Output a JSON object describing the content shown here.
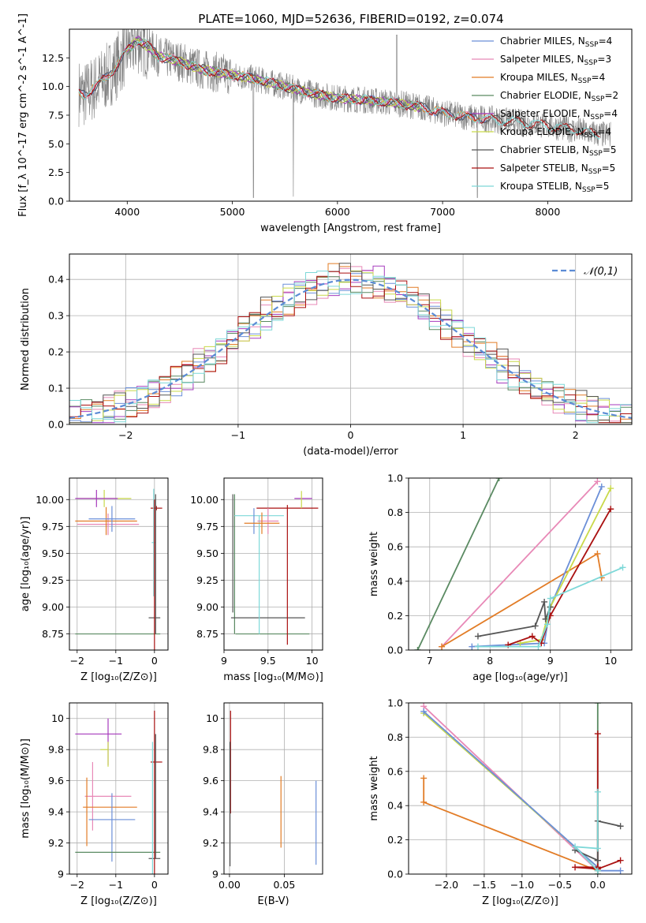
{
  "page_title": "PLATE=1060, MJD=52636, FIBERID=0192, z=0.074",
  "colors": {
    "Chabrier MILES": "#6b8fd8",
    "Salpeter MILES": "#e889b7",
    "Kroupa MILES": "#e27c26",
    "Chabrier ELODIE": "#5a8a62",
    "Salpeter ELODIE": "#a63bbd",
    "Kroupa ELODIE": "#c9d94a",
    "Chabrier STELIB": "#555555",
    "Salpeter STELIB": "#aa1111",
    "Kroupa STELIB": "#7dd8d8",
    "data": "#808080",
    "normal": "#5b8bd5"
  },
  "chart_data": [
    {
      "id": "spectrum",
      "type": "line",
      "title": "PLATE=1060, MJD=52636, FIBERID=0192, z=0.074",
      "xlabel": "wavelength [Angstrom, rest frame]",
      "ylabel": "Flux [f_λ 10^-17 erg cm^-2 s^-1 A^-1]",
      "xlim": [
        3450,
        8800
      ],
      "ylim": [
        0,
        15
      ],
      "xticks": [
        4000,
        5000,
        6000,
        7000,
        8000
      ],
      "yticks": [
        0.0,
        2.5,
        5.0,
        7.5,
        10.0,
        12.5
      ],
      "legend_position": "top-right",
      "legend": [
        {
          "name": "Chabrier MILES",
          "nssp": "4"
        },
        {
          "name": "Salpeter MILES",
          "nssp": "3"
        },
        {
          "name": "Kroupa MILES",
          "nssp": "4"
        },
        {
          "name": "Chabrier ELODIE",
          "nssp": "2"
        },
        {
          "name": "Salpeter ELODIE",
          "nssp": "4"
        },
        {
          "name": "Kroupa ELODIE",
          "nssp": "4"
        },
        {
          "name": "Chabrier STELIB",
          "nssp": "5"
        },
        {
          "name": "Salpeter STELIB",
          "nssp": "5"
        },
        {
          "name": "Kroupa STELIB",
          "nssp": "5"
        }
      ],
      "continuum": {
        "x": [
          3530,
          3600,
          3700,
          3800,
          3900,
          4000,
          4100,
          4200,
          4300,
          4500,
          4700,
          5000,
          5200,
          5500,
          5800,
          6000,
          6300,
          6600,
          6800,
          7000,
          7200,
          7500,
          7800,
          8000,
          8200,
          8500
        ],
        "y": [
          9.5,
          9.3,
          10.0,
          10.8,
          11.8,
          13.2,
          14.0,
          13.5,
          12.6,
          12.2,
          11.5,
          11.0,
          10.7,
          10.0,
          9.3,
          9.0,
          8.8,
          8.5,
          8.2,
          7.7,
          7.4,
          7.1,
          6.8,
          6.6,
          6.3,
          5.8
        ]
      },
      "model_ranges": [
        {
          "name": "Chabrier MILES",
          "x": [
            3540,
            7430
          ]
        },
        {
          "name": "Salpeter MILES",
          "x": [
            3540,
            7430
          ]
        },
        {
          "name": "Kroupa MILES",
          "x": [
            3540,
            7430
          ]
        },
        {
          "name": "Chabrier ELODIE",
          "x": [
            4000,
            6800
          ]
        },
        {
          "name": "Salpeter ELODIE",
          "x": [
            4000,
            6800
          ]
        },
        {
          "name": "Kroupa ELODIE",
          "x": [
            4000,
            6800
          ]
        },
        {
          "name": "Chabrier STELIB",
          "x": [
            3540,
            8500
          ]
        },
        {
          "name": "Salpeter STELIB",
          "x": [
            3540,
            8500
          ]
        },
        {
          "name": "Kroupa STELIB",
          "x": [
            3540,
            8500
          ]
        }
      ]
    },
    {
      "id": "residuals",
      "type": "histogram",
      "xlabel": "(data-model)/error",
      "ylabel": "Normed distribution",
      "xlim": [
        -2.5,
        2.5
      ],
      "ylim": [
        0,
        0.47
      ],
      "xticks": [
        -2,
        -1,
        0,
        1,
        2
      ],
      "yticks": [
        0.0,
        0.1,
        0.2,
        0.3,
        0.4
      ],
      "grid": true,
      "legend_position": "top-right",
      "normal_label": "𝒩(0,1)",
      "bin_width": 0.1,
      "series": [
        {
          "name": "Chabrier MILES",
          "offset": 0.0
        },
        {
          "name": "Salpeter MILES",
          "offset": 0.8
        },
        {
          "name": "Kroupa MILES",
          "offset": 1.6
        },
        {
          "name": "Chabrier ELODIE",
          "offset": 2.4
        },
        {
          "name": "Salpeter ELODIE",
          "offset": 3.2
        },
        {
          "name": "Kroupa ELODIE",
          "offset": 4.0
        },
        {
          "name": "Chabrier STELIB",
          "offset": 4.8
        },
        {
          "name": "Salpeter STELIB",
          "offset": 5.6
        },
        {
          "name": "Kroupa STELIB",
          "offset": 6.4
        }
      ]
    },
    {
      "id": "age-vs-Z",
      "type": "scatter",
      "xlabel": "Z [log₁₀(Z/Z⊙)]",
      "ylabel": "age  [log₁₀(age/yr)]",
      "xlim": [
        -2.2,
        0.35
      ],
      "ylim": [
        8.6,
        10.2
      ],
      "xticks": [
        -2,
        -1,
        0
      ],
      "yticks": [
        8.75,
        9.0,
        9.25,
        9.5,
        9.75,
        10.0
      ],
      "yticklabels": [
        "8.75",
        "9.00",
        "9.25",
        "9.50",
        "9.75",
        "10.00"
      ],
      "grid": true,
      "points": [
        {
          "name": "Salpeter MILES",
          "x": -1.2,
          "xerr": 0.8,
          "y": 9.77,
          "yerr": 0.1
        },
        {
          "name": "Kroupa MILES",
          "x": -1.25,
          "xerr": 0.8,
          "y": 9.8,
          "yerr": 0.13
        },
        {
          "name": "Chabrier MILES",
          "x": -1.1,
          "xerr": 0.6,
          "y": 9.82,
          "yerr": 0.12
        },
        {
          "name": "Kroupa ELODIE",
          "x": -1.3,
          "xerr": 0.7,
          "y": 10.01,
          "yerr": 0.08
        },
        {
          "name": "Salpeter ELODIE",
          "x": -1.5,
          "xerr": 0.55,
          "y": 10.01,
          "yerr": 0.08
        },
        {
          "name": "Chabrier ELODIE",
          "x": -0.95,
          "xerr": 1.1,
          "y": 8.75,
          "yerr": 0.0
        },
        {
          "name": "Chabrier STELIB",
          "x": 0.0,
          "xerr": 0.15,
          "y": 8.9,
          "yerr": 0.0
        },
        {
          "name": "Salpeter STELIB",
          "x": 0.05,
          "xerr": 0.15,
          "y": 9.92,
          "yerr": 0.02
        },
        {
          "name": "Kroupa STELIB",
          "x": -0.02,
          "xerr": 0.05,
          "y": 9.6,
          "yerr": 0.5
        },
        {
          "name": "Chabrier STELIB",
          "x": 0.03,
          "xerr": 0.0,
          "y": 9.4,
          "yerr": 0.65
        },
        {
          "name": "Salpeter STELIB",
          "x": 0.0,
          "xerr": 0.0,
          "y": 9.3,
          "yerr": 0.7
        }
      ]
    },
    {
      "id": "age-vs-mass",
      "type": "scatter",
      "xlabel": "mass [log₁₀(M/M⊙)]",
      "ylabel": "",
      "xlim": [
        9.0,
        10.12
      ],
      "ylim": [
        8.6,
        10.2
      ],
      "xticks": [
        9.0,
        9.5,
        10.0
      ],
      "yticks": [
        8.75,
        9.0,
        9.25,
        9.5,
        9.75,
        10.0
      ],
      "yticklabels": [
        "8.75",
        "9.00",
        "9.25",
        "9.50",
        "9.75",
        "10.00"
      ],
      "grid": true,
      "points": [
        {
          "name": "Chabrier ELODIE",
          "x": 9.55,
          "xerr": 0.42,
          "y": 8.75,
          "yerr": 0.0
        },
        {
          "name": "Chabrier ELODIE",
          "x": 9.12,
          "xerr": 0.0,
          "y": 9.4,
          "yerr": 0.65
        },
        {
          "name": "Chabrier STELIB",
          "x": 9.5,
          "xerr": 0.42,
          "y": 8.9,
          "yerr": 0.0
        },
        {
          "name": "Chabrier STELIB",
          "x": 9.1,
          "xerr": 0.0,
          "y": 9.5,
          "yerr": 0.55
        },
        {
          "name": "Kroupa STELIB",
          "x": 9.4,
          "xerr": 0.28,
          "y": 9.85,
          "yerr": 0.0
        },
        {
          "name": "Kroupa STELIB",
          "x": 9.4,
          "xerr": 0.0,
          "y": 9.3,
          "yerr": 0.55
        },
        {
          "name": "Salpeter STELIB",
          "x": 9.72,
          "xerr": 0.35,
          "y": 9.92,
          "yerr": 0.0
        },
        {
          "name": "Salpeter STELIB",
          "x": 9.72,
          "xerr": 0.0,
          "y": 9.3,
          "yerr": 0.65
        },
        {
          "name": "Chabrier MILES",
          "x": 9.34,
          "xerr": 0.0,
          "y": 9.8,
          "yerr": 0.12
        },
        {
          "name": "Salpeter MILES",
          "x": 9.5,
          "xerr": 0.12,
          "y": 9.8,
          "yerr": 0.12
        },
        {
          "name": "Kroupa MILES",
          "x": 9.43,
          "xerr": 0.2,
          "y": 9.78,
          "yerr": 0.1
        },
        {
          "name": "Salpeter ELODIE",
          "x": 9.9,
          "xerr": 0.1,
          "y": 10.01,
          "yerr": 0.0
        },
        {
          "name": "Kroupa ELODIE",
          "x": 9.88,
          "xerr": 0.0,
          "y": 10.0,
          "yerr": 0.08
        }
      ]
    },
    {
      "id": "mass-weight-vs-age",
      "type": "line",
      "xlabel": "age  [log₁₀(age/yr)]",
      "ylabel": "mass weight",
      "xlim": [
        6.65,
        10.35
      ],
      "ylim": [
        0,
        1
      ],
      "xticks": [
        7,
        8,
        9,
        10
      ],
      "yticks": [
        0.0,
        0.2,
        0.4,
        0.6,
        0.8,
        1.0
      ],
      "grid": true,
      "series": [
        {
          "name": "Chabrier ELODIE",
          "x": [
            6.8,
            8.15
          ],
          "y": [
            0.0,
            1.0
          ]
        },
        {
          "name": "Salpeter MILES",
          "x": [
            7.2,
            9.78
          ],
          "y": [
            0.02,
            0.98
          ]
        },
        {
          "name": "Kroupa MILES",
          "x": [
            7.2,
            9.78,
            9.85
          ],
          "y": [
            0.02,
            0.56,
            0.42
          ]
        },
        {
          "name": "Chabrier MILES",
          "x": [
            7.7,
            8.9,
            9.0,
            9.85
          ],
          "y": [
            0.02,
            0.04,
            0.25,
            0.95
          ]
        },
        {
          "name": "Kroupa ELODIE",
          "x": [
            8.5,
            8.85,
            9.0,
            10.0
          ],
          "y": [
            0.04,
            0.06,
            0.25,
            0.94
          ]
        },
        {
          "name": "Salpeter STELIB",
          "x": [
            8.3,
            8.7,
            8.85,
            9.0,
            10.0
          ],
          "y": [
            0.03,
            0.08,
            0.04,
            0.2,
            0.82
          ]
        },
        {
          "name": "Chabrier STELIB",
          "x": [
            7.8,
            8.75,
            8.9,
            8.92,
            9.0
          ],
          "y": [
            0.08,
            0.14,
            0.28,
            0.18,
            0.25
          ]
        },
        {
          "name": "Kroupa STELIB",
          "x": [
            7.8,
            8.8,
            8.95,
            9.0,
            10.2
          ],
          "y": [
            0.02,
            0.02,
            0.15,
            0.3,
            0.48
          ]
        }
      ]
    },
    {
      "id": "mass-vs-Z",
      "type": "scatter",
      "xlabel": "Z [log₁₀(Z/Z⊙)]",
      "ylabel": "mass [log₁₀(M/M⊙)]",
      "xlim": [
        -2.2,
        0.35
      ],
      "ylim": [
        9.0,
        10.1
      ],
      "xticks": [
        -2,
        -1,
        0
      ],
      "yticks": [
        9.0,
        9.2,
        9.4,
        9.6,
        9.8,
        10.0
      ],
      "grid": true,
      "points": [
        {
          "name": "Salpeter ELODIE",
          "x": -1.45,
          "xerr": 0.6,
          "y": 9.9,
          "yerr": 0.0
        },
        {
          "name": "Kroupa ELODIE",
          "x": -1.3,
          "xerr": 0.1,
          "y": 9.8,
          "yerr": 0.0
        },
        {
          "name": "Salpeter ELODIE",
          "x": -1.2,
          "xerr": 0.0,
          "y": 9.85,
          "yerr": 0.15
        },
        {
          "name": "Kroupa ELODIE",
          "x": -1.2,
          "xerr": 0.0,
          "y": 9.77,
          "yerr": 0.08
        },
        {
          "name": "Salpeter MILES",
          "x": -1.2,
          "xerr": 0.6,
          "y": 9.5,
          "yerr": 0.0
        },
        {
          "name": "Salpeter MILES",
          "x": -1.6,
          "xerr": 0.0,
          "y": 9.5,
          "yerr": 0.22
        },
        {
          "name": "Kroupa MILES",
          "x": -1.15,
          "xerr": 0.7,
          "y": 9.43,
          "yerr": 0.0
        },
        {
          "name": "Kroupa MILES",
          "x": -1.75,
          "xerr": 0.0,
          "y": 9.4,
          "yerr": 0.22
        },
        {
          "name": "Chabrier MILES",
          "x": -1.1,
          "xerr": 0.6,
          "y": 9.35,
          "yerr": 0.0
        },
        {
          "name": "Chabrier MILES",
          "x": -1.1,
          "xerr": 0.0,
          "y": 9.3,
          "yerr": 0.22
        },
        {
          "name": "Chabrier ELODIE",
          "x": -0.95,
          "xerr": 1.1,
          "y": 9.14,
          "yerr": 0.0
        },
        {
          "name": "Chabrier STELIB",
          "x": 0.0,
          "xerr": 0.15,
          "y": 9.1,
          "yerr": 0.0
        },
        {
          "name": "Salpeter STELIB",
          "x": 0.05,
          "xerr": 0.15,
          "y": 9.72,
          "yerr": 0.0
        },
        {
          "name": "Salpeter STELIB",
          "x": 0.0,
          "xerr": 0.0,
          "y": 9.5,
          "yerr": 0.55
        },
        {
          "name": "Kroupa STELIB",
          "x": -0.05,
          "xerr": 0.0,
          "y": 9.4,
          "yerr": 0.45
        },
        {
          "name": "Chabrier STELIB",
          "x": 0.03,
          "xerr": 0.0,
          "y": 9.5,
          "yerr": 0.4
        }
      ]
    },
    {
      "id": "mass-vs-EBV",
      "type": "scatter",
      "xlabel": "E(B-V)",
      "ylabel": "",
      "xlim": [
        -0.005,
        0.085
      ],
      "ylim": [
        9.0,
        10.1
      ],
      "xticks": [
        0.0,
        0.05
      ],
      "xticklabels": [
        "0.00",
        "0.05"
      ],
      "yticks": [
        9.0,
        9.2,
        9.4,
        9.6,
        9.8,
        10.0
      ],
      "grid": true,
      "points": [
        {
          "name": "Salpeter STELIB",
          "x": 0.001,
          "xerr": 0.0,
          "y": 9.72,
          "yerr": 0.33
        },
        {
          "name": "Chabrier STELIB",
          "x": 0.0005,
          "xerr": 0.0,
          "y": 9.45,
          "yerr": 0.4
        },
        {
          "name": "Kroupa MILES",
          "x": 0.047,
          "xerr": 0.0,
          "y": 9.4,
          "yerr": 0.23
        },
        {
          "name": "Chabrier MILES",
          "x": 0.079,
          "xerr": 0.0,
          "y": 9.33,
          "yerr": 0.27
        }
      ]
    },
    {
      "id": "mass-weight-vs-Z",
      "type": "line",
      "xlabel": "Z [log₁₀(Z/Z⊙)]",
      "ylabel": "mass weight",
      "xlim": [
        -2.5,
        0.45
      ],
      "ylim": [
        0,
        1
      ],
      "xticks": [
        -2.0,
        -1.5,
        -1.0,
        -0.5,
        0.0
      ],
      "xticklabels": [
        "−2.0",
        "−1.5",
        "−1.0",
        "−0.5",
        "0.0"
      ],
      "yticks": [
        0.0,
        0.2,
        0.4,
        0.6,
        0.8,
        1.0
      ],
      "grid": true,
      "series": [
        {
          "name": "Salpeter MILES",
          "x": [
            -2.3,
            0.0
          ],
          "y": [
            0.98,
            0.02
          ]
        },
        {
          "name": "Kroupa ELODIE",
          "x": [
            -2.3,
            0.0
          ],
          "y": [
            0.94,
            0.04
          ]
        },
        {
          "name": "Chabrier MILES",
          "x": [
            -2.3,
            0.0,
            0.0,
            0.3
          ],
          "y": [
            0.95,
            0.04,
            0.02,
            0.02
          ]
        },
        {
          "name": "Kroupa MILES",
          "x": [
            -2.3,
            -2.3,
            0.0
          ],
          "y": [
            0.56,
            0.42,
            0.02
          ]
        },
        {
          "name": "Chabrier ELODIE",
          "x": [
            0.0,
            0.0
          ],
          "y": [
            1.0,
            0.0
          ]
        },
        {
          "name": "Salpeter STELIB",
          "x": [
            0.0,
            0.0,
            -0.3,
            0.0,
            0.3
          ],
          "y": [
            0.82,
            0.04,
            0.04,
            0.03,
            0.08
          ]
        },
        {
          "name": "Chabrier STELIB",
          "x": [
            0.3,
            0.0,
            0.0,
            -0.3,
            0.0
          ],
          "y": [
            0.28,
            0.31,
            0.08,
            0.14,
            0.08
          ]
        },
        {
          "name": "Kroupa STELIB",
          "x": [
            0.0,
            0.0,
            -0.3,
            0.0
          ],
          "y": [
            0.48,
            0.15,
            0.16,
            0.02
          ]
        }
      ]
    }
  ]
}
